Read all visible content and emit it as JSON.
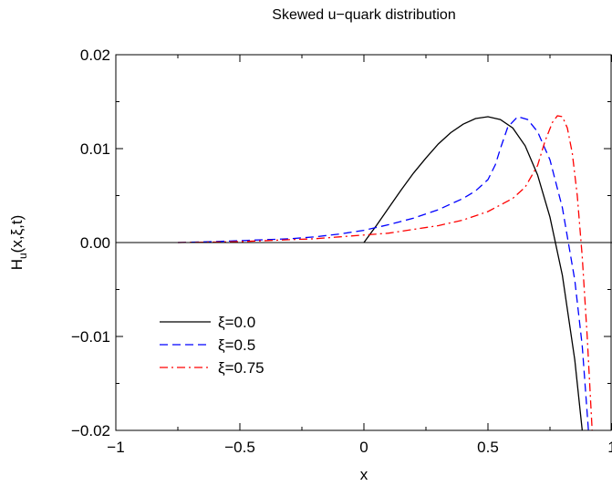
{
  "chart_data": {
    "type": "line",
    "title": "Skewed u−quark distribution",
    "xlabel": "x",
    "ylabel": "H_u(x,ξ,t)",
    "xlim": [
      -1,
      1
    ],
    "ylim": [
      -0.02,
      0.02
    ],
    "grid": false,
    "legend_position": "lower-left",
    "x_ticks": [
      {
        "value": -1,
        "label": "−1"
      },
      {
        "value": -0.5,
        "label": "−0.5"
      },
      {
        "value": 0,
        "label": "0"
      },
      {
        "value": 0.5,
        "label": "0.5"
      },
      {
        "value": 1,
        "label": "1"
      }
    ],
    "y_ticks": [
      {
        "value": -0.02,
        "label": "−0.02"
      },
      {
        "value": -0.01,
        "label": "−0.01"
      },
      {
        "value": 0,
        "label": "0.00"
      },
      {
        "value": 0.01,
        "label": "0.01"
      },
      {
        "value": 0.02,
        "label": "0.02"
      }
    ],
    "series": [
      {
        "name": "ξ=0.0",
        "color": "#000000",
        "dash": "solid",
        "x": [
          0.0,
          0.05,
          0.1,
          0.15,
          0.2,
          0.25,
          0.3,
          0.35,
          0.4,
          0.45,
          0.5,
          0.55,
          0.6,
          0.65,
          0.7,
          0.75,
          0.8,
          0.85,
          0.88
        ],
        "y": [
          0.0,
          0.0018,
          0.0037,
          0.0056,
          0.0074,
          0.009,
          0.0105,
          0.0117,
          0.0126,
          0.0132,
          0.0134,
          0.0131,
          0.0122,
          0.0103,
          0.0072,
          0.0027,
          -0.0035,
          -0.0125,
          -0.02
        ]
      },
      {
        "name": "ξ=0.5",
        "color": "#0000ff",
        "dash": "dashed",
        "x": [
          -0.75,
          -0.6,
          -0.5,
          -0.4,
          -0.3,
          -0.2,
          -0.1,
          0.0,
          0.1,
          0.2,
          0.3,
          0.4,
          0.45,
          0.5,
          0.53,
          0.55,
          0.58,
          0.62,
          0.66,
          0.7,
          0.75,
          0.8,
          0.85,
          0.88,
          0.905
        ],
        "y": [
          0.0,
          0.0001,
          0.0002,
          0.0003,
          0.0004,
          0.0006,
          0.0009,
          0.0013,
          0.0019,
          0.0026,
          0.0035,
          0.0047,
          0.0055,
          0.0067,
          0.0083,
          0.01,
          0.0123,
          0.0134,
          0.0131,
          0.0118,
          0.0088,
          0.0037,
          -0.004,
          -0.011,
          -0.02
        ]
      },
      {
        "name": "ξ=0.75",
        "color": "#ff0000",
        "dash": "dashdot",
        "x": [
          -0.75,
          -0.6,
          -0.5,
          -0.4,
          -0.3,
          -0.2,
          -0.1,
          0.0,
          0.1,
          0.2,
          0.3,
          0.4,
          0.5,
          0.6,
          0.65,
          0.7,
          0.73,
          0.76,
          0.78,
          0.8,
          0.82,
          0.84,
          0.86,
          0.88,
          0.9,
          0.92
        ],
        "y": [
          0.0,
          5e-05,
          0.0001,
          0.0002,
          0.0003,
          0.0004,
          0.0006,
          0.0008,
          0.001,
          0.0014,
          0.0018,
          0.0024,
          0.0033,
          0.0047,
          0.0059,
          0.0082,
          0.0108,
          0.0128,
          0.0135,
          0.0134,
          0.0122,
          0.0095,
          0.005,
          -0.0015,
          -0.01,
          -0.02
        ]
      }
    ]
  }
}
